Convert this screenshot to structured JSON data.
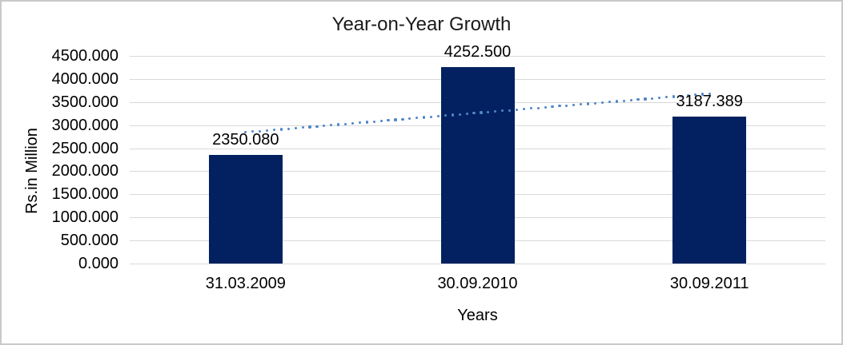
{
  "chart_data": {
    "type": "bar",
    "title": "Year-on-Year Growth",
    "xlabel": "Years",
    "ylabel": "Rs.in Million",
    "categories": [
      "31.03.2009",
      "30.09.2010",
      "30.09.2011"
    ],
    "values": [
      2350.08,
      4252.5,
      3187.389
    ],
    "data_labels": [
      "2350.080",
      "4252.500",
      "3187.389"
    ],
    "ylim": [
      0,
      4500
    ],
    "ytick_step": 500,
    "ytick_decimals": 3,
    "grid": true,
    "legend_position": "none",
    "bar_color": "#032160",
    "gridline_color": "#d9d9d9",
    "trendline": {
      "type": "linear",
      "style": "dotted",
      "color": "#4f86c6"
    },
    "background_color": "#ffffff",
    "border_color": "#c9c9c9"
  }
}
